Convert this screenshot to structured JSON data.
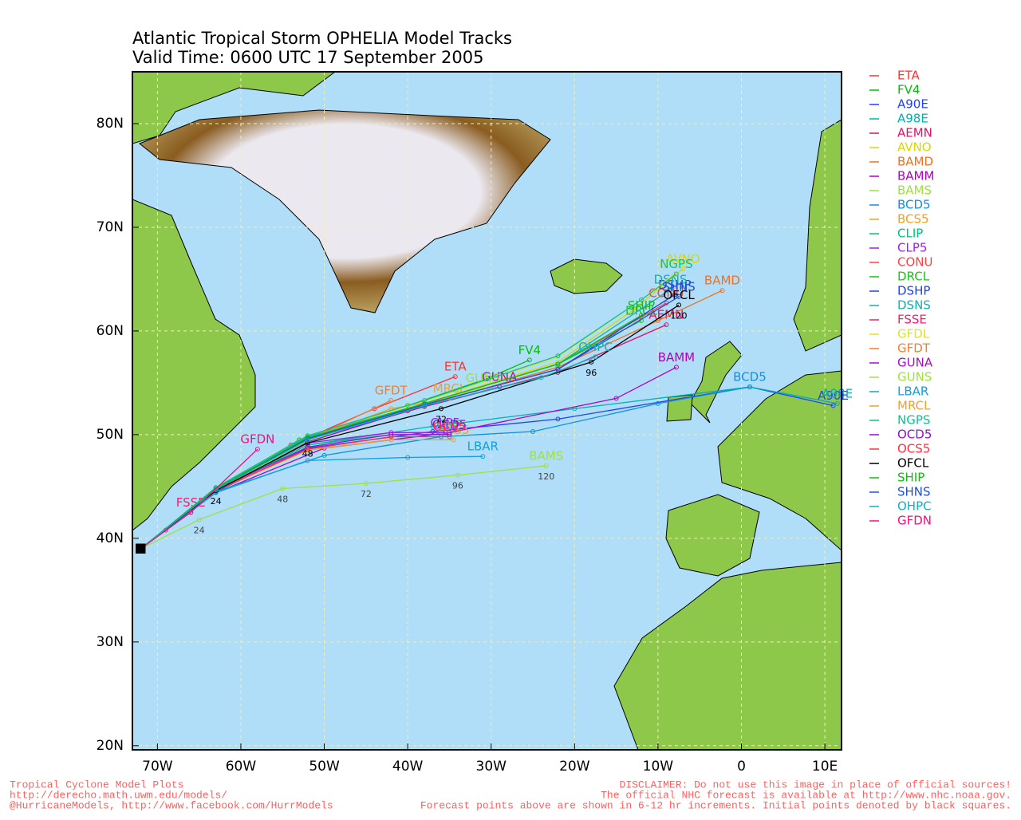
{
  "map": {
    "title": "Atlantic Tropical Storm OPHELIA Model Tracks",
    "subtitle": "Valid Time: 0600 UTC 17 September 2005",
    "xlim": [
      -73,
      12
    ],
    "ylim": [
      19.6,
      85
    ],
    "xticks": [
      {
        "value": -70,
        "label": "70W"
      },
      {
        "value": -60,
        "label": "60W"
      },
      {
        "value": -50,
        "label": "50W"
      },
      {
        "value": -40,
        "label": "40W"
      },
      {
        "value": -30,
        "label": "30W"
      },
      {
        "value": -20,
        "label": "20W"
      },
      {
        "value": -10,
        "label": "10W"
      },
      0,
      {
        "value": 10,
        "label": "10E"
      }
    ],
    "yticks": [
      {
        "value": 20,
        "label": "20N"
      },
      {
        "value": 30,
        "label": "30N"
      },
      {
        "value": 40,
        "label": "40N"
      },
      {
        "value": 50,
        "label": "50N"
      },
      {
        "value": 60,
        "label": "60N"
      },
      {
        "value": 70,
        "label": "70N"
      },
      {
        "value": 80,
        "label": "80N"
      }
    ],
    "grid": true,
    "tracks": [
      {
        "name": "ETA",
        "color": "#ff3030",
        "lon": [
          -72,
          -63,
          -54,
          -44,
          -34.3
        ],
        "lat": [
          39,
          44.5,
          49,
          52.5,
          55.6
        ]
      },
      {
        "name": "FV4",
        "color": "#00c000",
        "lon": [
          -72,
          -63,
          -53,
          -40,
          -30.5,
          -25.4
        ],
        "lat": [
          39,
          44.8,
          49.5,
          52.8,
          55.4,
          57.2
        ]
      },
      {
        "name": "A90E",
        "color": "#2040ff",
        "lon": [
          -72,
          -63,
          -52,
          -37,
          -22,
          1,
          11
        ],
        "lat": [
          39,
          44.5,
          48.7,
          50.3,
          51.5,
          54.6,
          52.8
        ]
      },
      {
        "name": "A98E",
        "color": "#00b0b0",
        "lon": [
          -72,
          -63,
          -52,
          -37,
          -20,
          1,
          11.5
        ],
        "lat": [
          39,
          44.6,
          49,
          50.8,
          52.5,
          54.6,
          53
        ]
      },
      {
        "name": "AEMN",
        "color": "#e0106a",
        "lon": [
          -72,
          -63,
          -52,
          -38,
          -22,
          -9
        ],
        "lat": [
          39,
          44.7,
          49.5,
          52.7,
          56,
          60.6
        ]
      },
      {
        "name": "AVNO",
        "color": "#d8d800",
        "lon": [
          -72,
          -63,
          -52,
          -38,
          -22,
          -13,
          -7
        ],
        "lat": [
          39,
          44.8,
          49.8,
          53,
          57,
          62,
          66
        ]
      },
      {
        "name": "BAMD",
        "color": "#f07020",
        "lon": [
          -72,
          -63,
          -52,
          -38,
          -22,
          -10,
          -2.3
        ],
        "lat": [
          39,
          44.7,
          49.6,
          52.8,
          56.5,
          61,
          63.9
        ]
      },
      {
        "name": "BAMM",
        "color": "#b000c0",
        "lon": [
          -72,
          -63,
          -50,
          -35,
          -15,
          -7.8
        ],
        "lat": [
          39,
          44.4,
          48.7,
          50.2,
          53.5,
          56.5
        ]
      },
      {
        "name": "BAMS",
        "color": "#a0e040",
        "lon": [
          -72,
          -65,
          -55,
          -45,
          -34,
          -23.4
        ],
        "lat": [
          39,
          41.8,
          44.8,
          45.3,
          46.1,
          47
        ],
        "hours": [
          null,
          24,
          48,
          72,
          96,
          120
        ]
      },
      {
        "name": "BCD5",
        "color": "#1090e0",
        "lon": [
          -72,
          -63,
          -50,
          -36,
          -25,
          -10,
          1
        ],
        "lat": [
          39,
          44.5,
          48,
          49.8,
          50.3,
          53,
          54.6
        ]
      },
      {
        "name": "BCS5",
        "color": "#f0a020",
        "lon": [
          -72,
          -63,
          -52,
          -42,
          -34.5
        ],
        "lat": [
          39,
          44.6,
          48.5,
          49.5,
          49.5
        ]
      },
      {
        "name": "CLIP",
        "color": "#00c080",
        "lon": [
          -72,
          -63,
          -52,
          -42,
          -35
        ],
        "lat": [
          39,
          44.7,
          49,
          50,
          50
        ]
      },
      {
        "name": "CLP5",
        "color": "#a020e0",
        "lon": [
          -72,
          -63,
          -52,
          -42,
          -35.5
        ],
        "lat": [
          39,
          44.7,
          49.2,
          50.2,
          50.2
        ]
      },
      {
        "name": "CONU",
        "color": "#ff4040",
        "lon": [
          -72,
          -63,
          -52,
          -38,
          -22,
          -9
        ],
        "lat": [
          39,
          44.7,
          49.6,
          53,
          56.8,
          62.7
        ]
      },
      {
        "name": "DRCL",
        "color": "#20c020",
        "lon": [
          -72,
          -63,
          -52,
          -38,
          -22,
          -12
        ],
        "lat": [
          39,
          44.8,
          49.7,
          53,
          56.8,
          61
        ]
      },
      {
        "name": "DSHP",
        "color": "#2040e0",
        "lon": [
          -72,
          -63,
          -52,
          -38,
          -22,
          -8
        ],
        "lat": [
          39,
          44.7,
          49.6,
          52.9,
          56.3,
          63.5
        ]
      },
      {
        "name": "DSNS",
        "color": "#10b0b0",
        "lon": [
          -72,
          -63,
          -52,
          -38,
          -22,
          -8.5
        ],
        "lat": [
          39,
          44.8,
          49.8,
          53,
          56.8,
          64
        ]
      },
      {
        "name": "FSSE",
        "color": "#f02070",
        "lon": [
          -72,
          -69,
          -66
        ],
        "lat": [
          39,
          40.8,
          42.5
        ]
      },
      {
        "name": "GFDL",
        "color": "#e0e030",
        "lon": [
          -72,
          -63,
          -52,
          -38,
          -22,
          -12,
          -8
        ],
        "lat": [
          39,
          44.9,
          49.9,
          53.2,
          57.5,
          63,
          65.5
        ]
      },
      {
        "name": "GFDT",
        "color": "#f08030",
        "lon": [
          -72,
          -63,
          -52,
          -42
        ],
        "lat": [
          39,
          44.8,
          49.5,
          53.3
        ]
      },
      {
        "name": "GUNA",
        "color": "#a010c0",
        "lon": [
          -72,
          -63,
          -52,
          -40,
          -29
        ],
        "lat": [
          39,
          44.6,
          49.3,
          52.3,
          54.6
        ]
      },
      {
        "name": "GUNS",
        "color": "#a0e040",
        "lon": [
          -72,
          -63,
          -52,
          -40,
          -31
        ],
        "lat": [
          39,
          44.6,
          49.4,
          52.5,
          54.5
        ]
      },
      {
        "name": "LBAR",
        "color": "#10a0e0",
        "lon": [
          -72,
          -63,
          -52,
          -40,
          -31
        ],
        "lat": [
          39,
          44.4,
          47.5,
          47.8,
          47.9
        ]
      },
      {
        "name": "MRCL",
        "color": "#f0a030",
        "lon": [
          -72,
          -63,
          -52,
          -42,
          -35
        ],
        "lat": [
          39,
          44.8,
          49.6,
          52.5,
          53.5
        ]
      },
      {
        "name": "NGPS",
        "color": "#10c090",
        "lon": [
          -72,
          -63,
          -52,
          -38,
          -22,
          -12,
          -7.8
        ],
        "lat": [
          39,
          44.9,
          49.9,
          53.3,
          57.6,
          63,
          65.5
        ]
      },
      {
        "name": "OCD5",
        "color": "#9010d0",
        "lon": [
          -72,
          -63,
          -52,
          -42,
          -35
        ],
        "lat": [
          39,
          44.7,
          48.8,
          50,
          50
        ]
      },
      {
        "name": "OCS5",
        "color": "#ff3040",
        "lon": [
          -72,
          -63,
          -52,
          -42,
          -35
        ],
        "lat": [
          39,
          44.6,
          48.6,
          49.8,
          49.8
        ]
      },
      {
        "name": "OFCL",
        "color": "#000000",
        "lon": [
          -72,
          -63,
          -52,
          -36,
          -18,
          -7.5
        ],
        "lat": [
          39,
          44.6,
          49.2,
          52.5,
          57,
          62.5
        ],
        "hours": [
          null,
          24,
          48,
          72,
          96,
          120
        ]
      },
      {
        "name": "SHIP",
        "color": "#10c010",
        "lon": [
          -72,
          -63,
          -52,
          -38,
          -22,
          -12
        ],
        "lat": [
          39,
          44.8,
          49.7,
          53,
          56.8,
          61.5
        ]
      },
      {
        "name": "SHNS",
        "color": "#2050d0",
        "lon": [
          -72,
          -63,
          -52,
          -38,
          -22,
          -7.5
        ],
        "lat": [
          39,
          44.7,
          49.6,
          52.9,
          56.3,
          63.3
        ]
      },
      {
        "name": "OHPC",
        "color": "#10b0c0",
        "lon": [
          -72,
          -63,
          -52,
          -38,
          -24,
          -17.5
        ],
        "lat": [
          39,
          44.7,
          49.5,
          52.8,
          55.5,
          57.5
        ]
      },
      {
        "name": "GFDN",
        "color": "#f01080",
        "lon": [
          -72,
          -66,
          -58
        ],
        "lat": [
          39,
          42.5,
          48.6
        ]
      }
    ],
    "footer": {
      "left": [
        "Tropical Cyclone Model Plots",
        "http://derecho.math.uwm.edu/models/",
        "@HurricaneModels, http://www.facebook.com/HurrModels"
      ],
      "right": [
        "DISCLAIMER: Do not use this image in place of official sources!",
        "The official NHC forecast is available at http://www.nhc.noaa.gov.",
        "Forecast points above are shown in 6-12 hr increments. Initial points denoted by black squares."
      ]
    }
  }
}
